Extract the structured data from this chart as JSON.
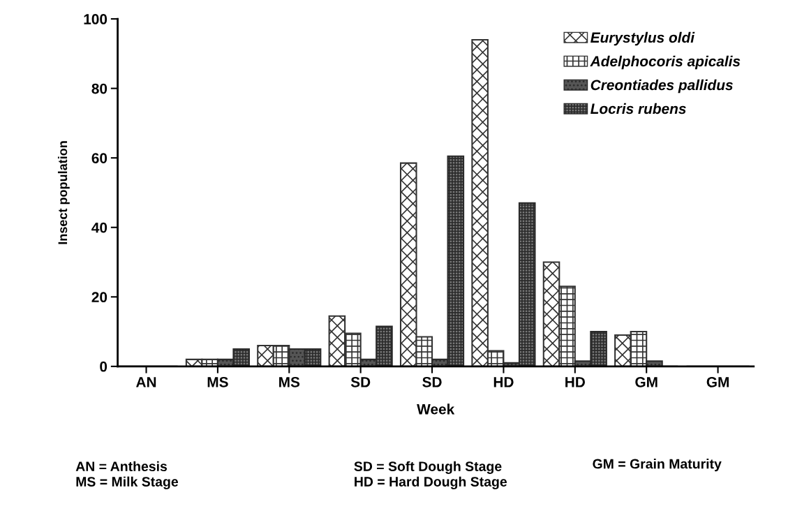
{
  "chart_data": {
    "type": "bar",
    "xlabel": "Week",
    "ylabel": "Insect population",
    "categories": [
      "AN",
      "MS",
      "MS",
      "SD",
      "SD",
      "HD",
      "HD",
      "GM",
      "GM"
    ],
    "series": [
      {
        "name": "Eurystylus oldi",
        "color": "#333333",
        "values": [
          0,
          2,
          6,
          14.5,
          58.5,
          94,
          30,
          9,
          0
        ]
      },
      {
        "name": "Adelphocoris apicalis",
        "color": "#333333",
        "values": [
          0,
          2,
          6,
          9.5,
          8.5,
          4.5,
          23,
          10,
          0
        ]
      },
      {
        "name": "Creontiades pallidus",
        "color": "#2a2a2a",
        "values": [
          0,
          2,
          5,
          2,
          2,
          1,
          1.5,
          1.5,
          0
        ]
      },
      {
        "name": "Locris rubens",
        "color": "#2a2a2a",
        "values": [
          0,
          5,
          5,
          11.5,
          60.5,
          47,
          10,
          0,
          0
        ]
      }
    ],
    "ylim": [
      0,
      100
    ],
    "yticks": [
      0,
      20,
      40,
      60,
      80,
      100
    ],
    "grid": false,
    "legend": "top right",
    "annotations": [
      "AN = Anthesis",
      "MS = Milk Stage",
      "SD = Soft Dough Stage",
      "HD = Hard Dough Stage",
      "GM = Grain Maturity"
    ]
  }
}
